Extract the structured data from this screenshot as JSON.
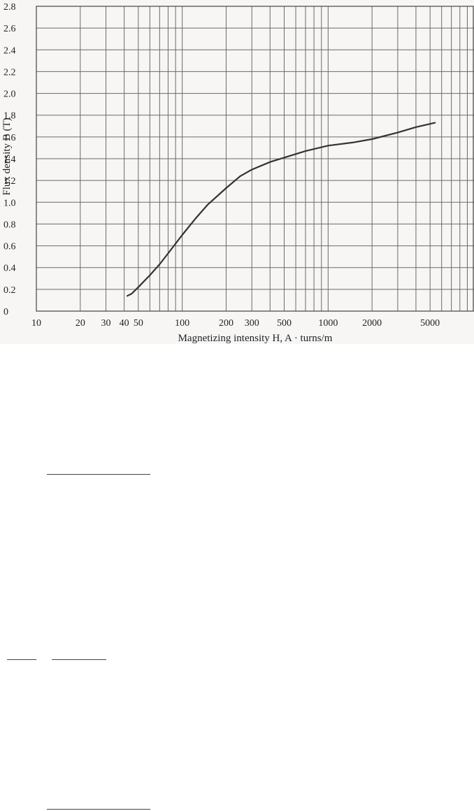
{
  "chart_data": {
    "type": "line",
    "xscale": "log",
    "xlim": [
      10,
      10000
    ],
    "ylim": [
      0,
      2.8
    ],
    "grid": true,
    "xlabel": "Magnetizing intensity H,  A · turns/m",
    "ylabel": "Flux density B (T)",
    "x_ticks": [
      10,
      20,
      30,
      40,
      50,
      100,
      200,
      300,
      500,
      1000,
      2000,
      5000
    ],
    "y_ticks": [
      0,
      0.2,
      0.4,
      0.6,
      0.8,
      1.0,
      1.2,
      1.4,
      1.6,
      1.8,
      2.0,
      2.2,
      2.4,
      2.6,
      2.8
    ],
    "y_tick_labels": [
      "0",
      "0.2",
      "0.4",
      "0.6",
      "0.8",
      "1.0",
      "1.2",
      "1.4",
      "1.6",
      "1.8",
      "2.0",
      "2.2",
      "2.4",
      "2.6",
      "2.8"
    ],
    "series": [
      {
        "color": "#333333",
        "x": [
          42,
          45,
          50,
          60,
          70,
          80,
          100,
          125,
          150,
          200,
          250,
          300,
          400,
          500,
          700,
          1000,
          1500,
          2000,
          3000,
          4000,
          5000,
          5400
        ],
        "y": [
          0.14,
          0.16,
          0.22,
          0.33,
          0.43,
          0.53,
          0.7,
          0.86,
          0.98,
          1.13,
          1.24,
          1.3,
          1.37,
          1.41,
          1.47,
          1.52,
          1.55,
          1.58,
          1.64,
          1.69,
          1.72,
          1.73
        ]
      }
    ]
  }
}
